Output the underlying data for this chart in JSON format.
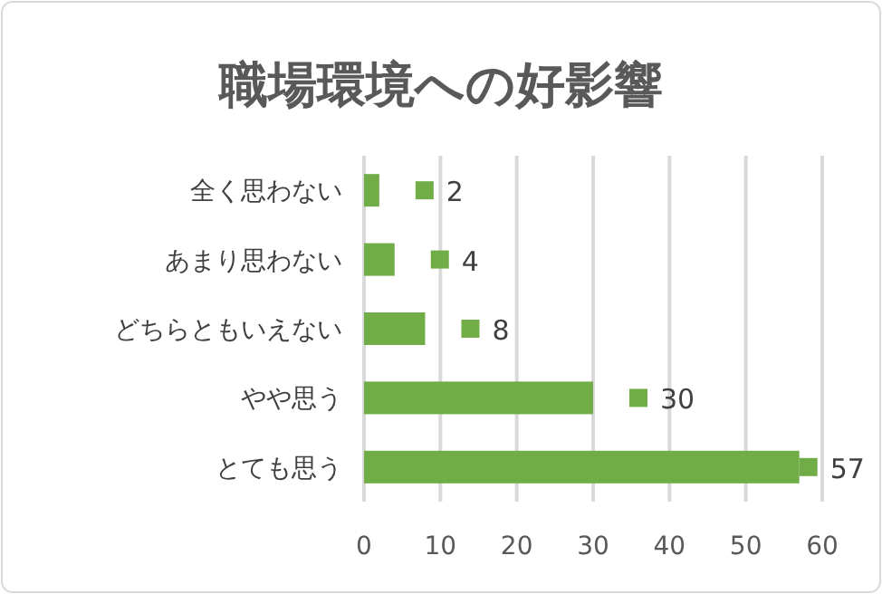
{
  "chart_data": {
    "type": "bar",
    "orientation": "horizontal",
    "title": "職場環境への好影響",
    "categories": [
      "全く思わない",
      "あまり思わない",
      "どちらともいえない",
      "やや思う",
      "とても思う"
    ],
    "values": [
      2,
      4,
      8,
      30,
      57
    ],
    "color": "#70ad47",
    "xlim": [
      0,
      60
    ],
    "xticks": [
      0,
      10,
      20,
      30,
      40,
      50,
      60
    ],
    "grid": "x",
    "data_labels": true
  }
}
